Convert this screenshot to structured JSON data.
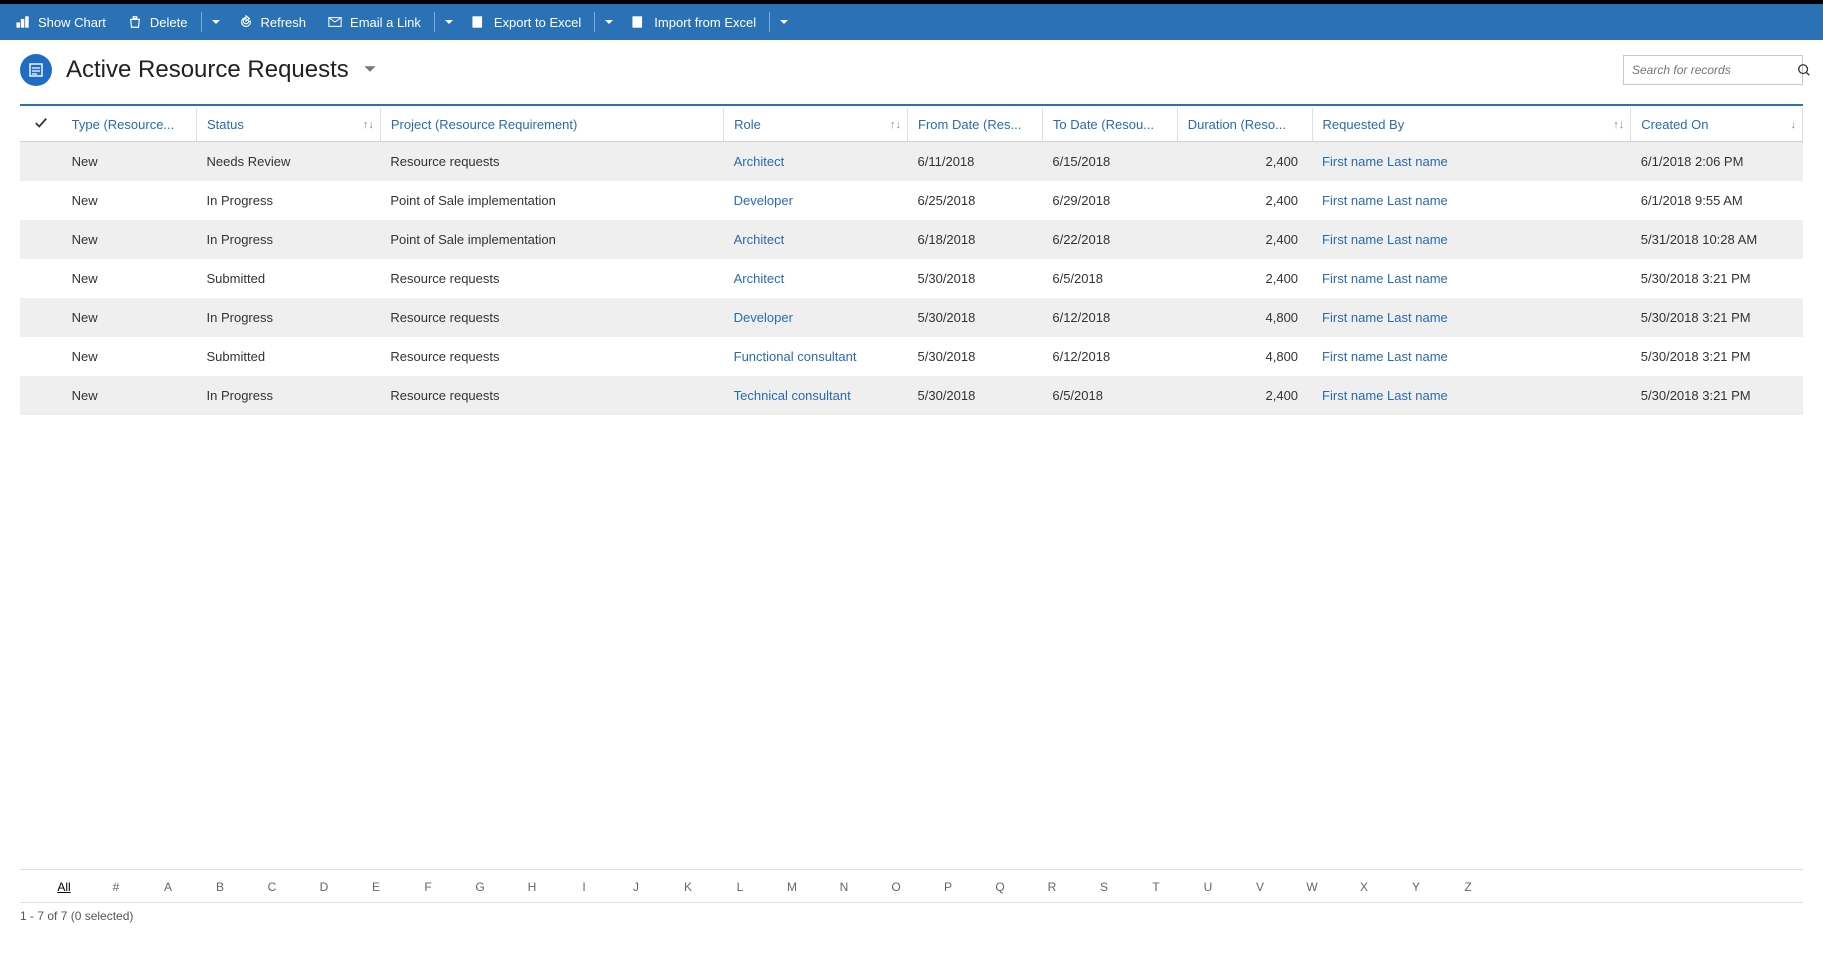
{
  "commandBar": {
    "showChart": "Show Chart",
    "delete": "Delete",
    "refresh": "Refresh",
    "emailLink": "Email a Link",
    "exportExcel": "Export to Excel",
    "importExcel": "Import from Excel"
  },
  "header": {
    "title": "Active Resource Requests",
    "searchPlaceholder": "Search for records"
  },
  "grid": {
    "columns": {
      "type": "Type (Resource...",
      "status": "Status",
      "project": "Project (Resource Requirement)",
      "role": "Role",
      "fromDate": "From Date (Res...",
      "toDate": "To Date (Resou...",
      "duration": "Duration (Reso...",
      "requestedBy": "Requested By",
      "createdOn": "Created On"
    },
    "rows": [
      {
        "type": "New",
        "status": "Needs Review",
        "project": "Resource requests",
        "role": "Architect",
        "fromDate": "6/11/2018",
        "toDate": "6/15/2018",
        "duration": "2,400",
        "requestedBy": "First name Last name",
        "createdOn": "6/1/2018 2:06 PM"
      },
      {
        "type": "New",
        "status": "In Progress",
        "project": "Point of Sale implementation",
        "role": "Developer",
        "fromDate": "6/25/2018",
        "toDate": "6/29/2018",
        "duration": "2,400",
        "requestedBy": "First name Last name",
        "createdOn": "6/1/2018 9:55 AM"
      },
      {
        "type": "New",
        "status": "In Progress",
        "project": "Point of Sale implementation",
        "role": "Architect",
        "fromDate": "6/18/2018",
        "toDate": "6/22/2018",
        "duration": "2,400",
        "requestedBy": "First name Last name",
        "createdOn": "5/31/2018 10:28 AM"
      },
      {
        "type": "New",
        "status": "Submitted",
        "project": "Resource requests",
        "role": "Architect",
        "fromDate": "5/30/2018",
        "toDate": "6/5/2018",
        "duration": "2,400",
        "requestedBy": "First name Last name",
        "createdOn": "5/30/2018 3:21 PM"
      },
      {
        "type": "New",
        "status": "In Progress",
        "project": "Resource requests",
        "role": "Developer",
        "fromDate": "5/30/2018",
        "toDate": "6/12/2018",
        "duration": "4,800",
        "requestedBy": "First name Last name",
        "createdOn": "5/30/2018 3:21 PM"
      },
      {
        "type": "New",
        "status": "Submitted",
        "project": "Resource requests",
        "role": "Functional consultant",
        "fromDate": "5/30/2018",
        "toDate": "6/12/2018",
        "duration": "4,800",
        "requestedBy": "First name Last name",
        "createdOn": "5/30/2018 3:21 PM"
      },
      {
        "type": "New",
        "status": "In Progress",
        "project": "Resource requests",
        "role": "Technical consultant",
        "fromDate": "5/30/2018",
        "toDate": "6/5/2018",
        "duration": "2,400",
        "requestedBy": "First name Last name",
        "createdOn": "5/30/2018 3:21 PM"
      }
    ]
  },
  "alphaBar": {
    "items": [
      "All",
      "#",
      "A",
      "B",
      "C",
      "D",
      "E",
      "F",
      "G",
      "H",
      "I",
      "J",
      "K",
      "L",
      "M",
      "N",
      "O",
      "P",
      "Q",
      "R",
      "S",
      "T",
      "U",
      "V",
      "W",
      "X",
      "Y",
      "Z"
    ],
    "active": "All"
  },
  "footer": {
    "statusText": "1 - 7 of 7 (0 selected)"
  },
  "colors": {
    "cmdbar": "#2a72b5",
    "link": "#2a6ab3",
    "rowAlt": "#efefef"
  }
}
